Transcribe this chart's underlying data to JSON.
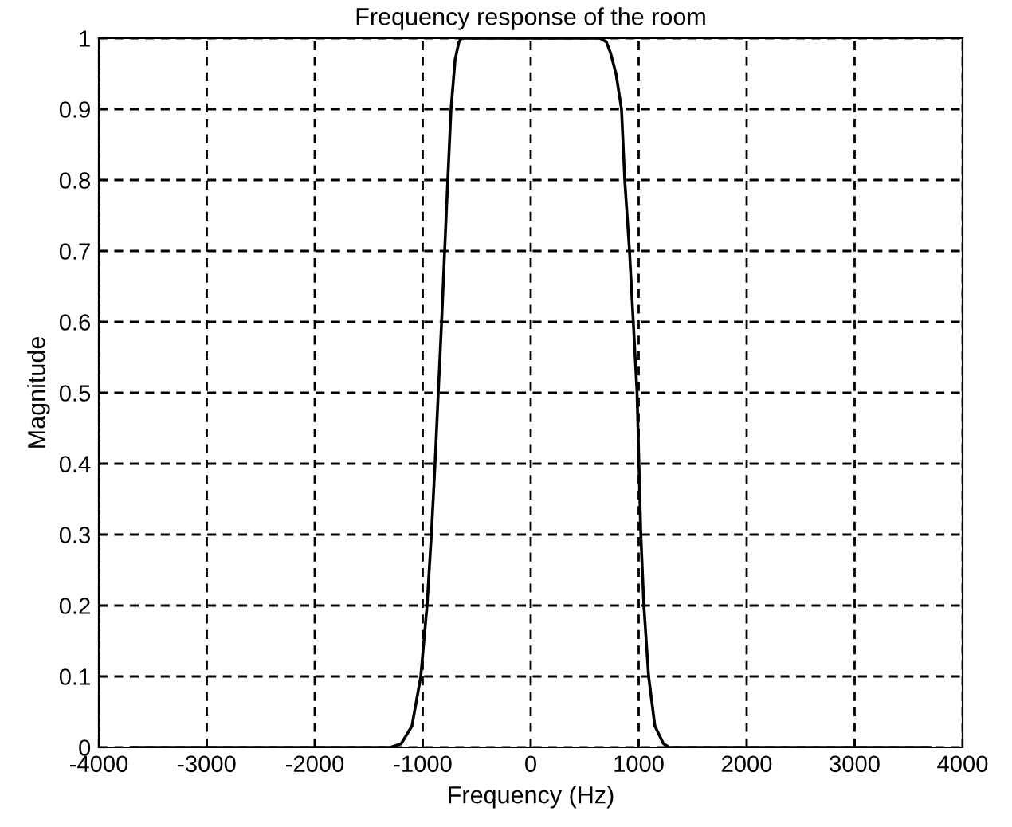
{
  "chart_data": {
    "type": "line",
    "title": "Frequency response of the room",
    "xlabel": "Frequency (Hz)",
    "ylabel": "Magnitude",
    "series": [
      {
        "color": "#000000",
        "x": [
          -3700,
          -1300,
          -1200,
          -1100,
          -1018,
          -960,
          -920,
          -886,
          -856,
          -825,
          -797,
          -768,
          -738,
          -700,
          -664,
          -640,
          0,
          640,
          700,
          738,
          790,
          841,
          871,
          915,
          950,
          985,
          1020,
          1048,
          1092,
          1150,
          1230,
          1284,
          3700
        ],
        "values": [
          0,
          0,
          0.005,
          0.03,
          0.1,
          0.2,
          0.3,
          0.4,
          0.5,
          0.6,
          0.7,
          0.8,
          0.9,
          0.97,
          0.995,
          1,
          1,
          1,
          0.995,
          0.98,
          0.95,
          0.9,
          0.8,
          0.7,
          0.6,
          0.5,
          0.3,
          0.2,
          0.1,
          0.03,
          0.005,
          0,
          0
        ]
      }
    ],
    "xlim": [
      -4000,
      4000
    ],
    "xticks": [
      -4000,
      -3000,
      -2000,
      -1000,
      0,
      1000,
      2000,
      3000,
      4000
    ],
    "ylim": [
      0,
      1
    ],
    "yticks": [
      0,
      0.1,
      0.2,
      0.3,
      0.4,
      0.5,
      0.6,
      0.7,
      0.8,
      0.9,
      1
    ],
    "grid": true,
    "marker": "none",
    "line_style": "solid"
  }
}
